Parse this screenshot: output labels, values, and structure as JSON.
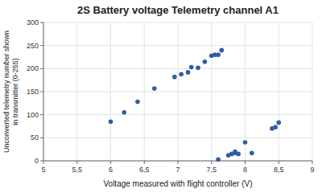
{
  "chart_data": {
    "type": "scatter",
    "title": "2S Battery voltage Telemetry channel A1",
    "xlabel": "Voltage measured with flight controller (V)",
    "ylabel": "Unconverted telemetry number shown\nin transmitter (0-255)",
    "x": [
      6.0,
      6.2,
      6.4,
      6.65,
      6.95,
      7.05,
      7.15,
      7.2,
      7.3,
      7.4,
      7.5,
      7.55,
      7.6,
      7.65,
      7.6,
      7.75,
      7.8,
      7.85,
      7.85,
      7.9,
      8.0,
      8.1,
      8.4,
      8.45,
      8.5
    ],
    "y": [
      85,
      105,
      128,
      157,
      182,
      188,
      192,
      203,
      202,
      215,
      228,
      230,
      230,
      240,
      3,
      12,
      15,
      17,
      20,
      15,
      40,
      17,
      70,
      73,
      83
    ],
    "color": "#2E5DA6",
    "xlim": [
      5,
      9
    ],
    "ylim": [
      0,
      300
    ],
    "xticks": [
      5,
      {
        "value": 5.5,
        "label": "5,5"
      },
      6,
      {
        "value": 6.5,
        "label": "6,5"
      },
      7,
      {
        "value": 7.5,
        "label": "7,5"
      },
      8,
      {
        "value": 8.5,
        "label": "8,5"
      },
      9
    ],
    "yticks": [
      0,
      50,
      100,
      150,
      200,
      250,
      300
    ],
    "grid": true
  }
}
